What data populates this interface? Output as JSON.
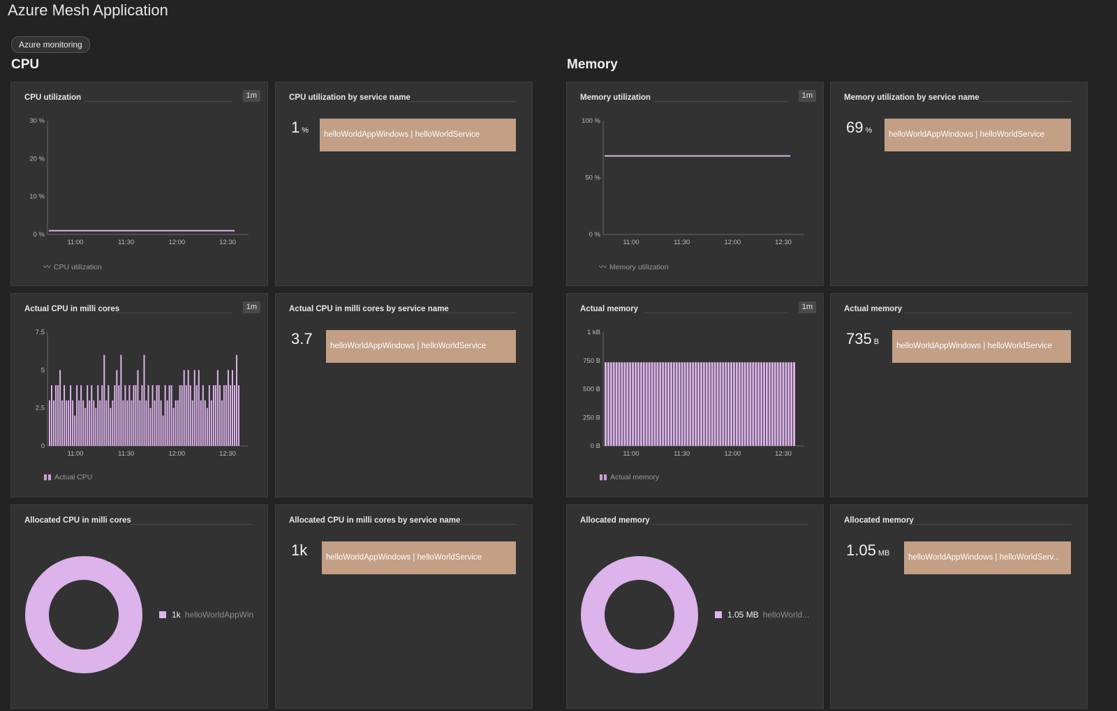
{
  "page": {
    "title": "Azure Mesh Application",
    "tag": "Azure monitoring"
  },
  "colors": {
    "background": "#232323",
    "tile": "#323232",
    "series": "#dcb3ea",
    "service_bar": "#c29f85"
  },
  "sections": {
    "cpu": "CPU",
    "memory": "Memory"
  },
  "tiles": {
    "cpu_util": {
      "title": "CPU utilization",
      "resolution": "1m",
      "legend": "CPU utilization",
      "legend_icon": "line-chart-icon"
    },
    "cpu_util_svc": {
      "title": "CPU utilization by service name",
      "value": "1",
      "unit": "%",
      "service": "helloWorldAppWindows | helloWorldService"
    },
    "actual_cpu": {
      "title": "Actual CPU in milli cores",
      "resolution": "1m",
      "legend": "Actual CPU",
      "legend_icon": "bar-chart-icon"
    },
    "actual_cpu_svc": {
      "title": "Actual CPU in milli cores by service name",
      "value": "3.7",
      "unit": "",
      "service": "helloWorldAppWindows | helloWorldService"
    },
    "alloc_cpu": {
      "title": "Allocated CPU in milli cores",
      "legend_value": "1k",
      "legend_name": "helloWorldAppWin"
    },
    "alloc_cpu_svc": {
      "title": "Allocated CPU in milli cores by service name",
      "value": "1k",
      "unit": "",
      "service": "helloWorldAppWindows | helloWorldService"
    },
    "mem_util": {
      "title": "Memory utilization",
      "resolution": "1m",
      "legend": "Memory utilization",
      "legend_icon": "line-chart-icon"
    },
    "mem_util_svc": {
      "title": "Memory utilization by service name",
      "value": "69",
      "unit": "%",
      "service": "helloWorldAppWindows | helloWorldService"
    },
    "actual_mem": {
      "title": "Actual memory",
      "resolution": "1m",
      "legend": "Actual memory",
      "legend_icon": "bar-chart-icon"
    },
    "actual_mem_svc": {
      "title": "Actual memory",
      "value": "735",
      "unit": "B",
      "service": "helloWorldAppWindows | helloWorldService"
    },
    "alloc_mem": {
      "title": "Allocated memory",
      "legend_value": "1.05 MB",
      "legend_name": "helloWorld..."
    },
    "alloc_mem_svc": {
      "title": "Allocated memory",
      "value": "1.05",
      "unit": "MB",
      "service": "helloWorldAppWindows | helloWorldServ..."
    }
  },
  "chart_data": [
    {
      "id": "cpu_util",
      "type": "line",
      "x_ticks": [
        "11:00",
        "11:30",
        "12:00",
        "12:30"
      ],
      "y_ticks": [
        "0 %",
        "10 %",
        "20 %",
        "30 %"
      ],
      "ylim": [
        0,
        30
      ],
      "series": [
        {
          "name": "CPU utilization",
          "values": [
            1,
            1,
            1,
            1,
            1,
            1,
            1,
            1
          ]
        }
      ]
    },
    {
      "id": "mem_util",
      "type": "line",
      "x_ticks": [
        "11:00",
        "11:30",
        "12:00",
        "12:30"
      ],
      "y_ticks": [
        "0 %",
        "50 %",
        "100 %"
      ],
      "ylim": [
        0,
        100
      ],
      "series": [
        {
          "name": "Memory utilization",
          "values": [
            69,
            69,
            69,
            69,
            69,
            69,
            69,
            69
          ]
        }
      ]
    },
    {
      "id": "actual_cpu",
      "type": "bar",
      "x_ticks": [
        "11:00",
        "11:30",
        "12:00",
        "12:30"
      ],
      "y_ticks": [
        "0",
        "2.5",
        "5",
        "7.5"
      ],
      "ylim": [
        0,
        7.5
      ],
      "series": [
        {
          "name": "Actual CPU",
          "values": [
            3.0,
            4.0,
            3.0,
            4.0,
            4.0,
            5.0,
            3.0,
            4.0,
            3.0,
            3.0,
            4.0,
            3.0,
            2.0,
            4.0,
            3.0,
            4.0,
            3.0,
            2.5,
            4.0,
            3.0,
            4.0,
            3.0,
            2.5,
            4.0,
            3.0,
            4.0,
            6.0,
            3.0,
            4.0,
            2.5,
            3.0,
            4.0,
            5.0,
            4.0,
            6.0,
            3.0,
            4.0,
            3.0,
            4.0,
            3.0,
            4.0,
            4.0,
            5.0,
            3.0,
            4.0,
            6.0,
            3.0,
            4.0,
            2.5,
            4.0,
            3.0,
            4.0,
            4.0,
            3.0,
            2.0,
            4.0,
            3.0,
            4.0,
            4.0,
            2.5,
            3.0,
            3.0,
            4.0,
            4.0,
            5.0,
            4.0,
            5.0,
            4.0,
            3.0,
            5.0,
            4.0,
            5.0,
            3.0,
            4.0,
            3.0,
            2.5,
            4.0,
            3.0,
            4.0,
            4.0,
            5.0,
            4.0,
            3.0,
            4.0,
            4.0,
            5.0,
            4.0,
            5.0,
            4.0,
            6.0,
            4.0
          ]
        }
      ]
    },
    {
      "id": "actual_mem",
      "type": "bar",
      "x_ticks": [
        "11:00",
        "11:30",
        "12:00",
        "12:30"
      ],
      "y_ticks": [
        "0 B",
        "250 B",
        "500 B",
        "750 B",
        "1 kB"
      ],
      "ylim": [
        0,
        1000
      ],
      "series": [
        {
          "name": "Actual memory",
          "values": [
            735,
            735,
            735,
            735,
            735,
            735,
            735,
            735,
            735,
            735,
            735,
            735,
            735,
            735,
            735,
            735,
            735,
            735,
            735,
            735,
            735,
            735,
            735,
            735,
            735,
            735,
            735,
            735,
            735,
            735,
            735,
            735,
            735,
            735,
            735,
            735,
            735,
            735,
            735,
            735,
            735,
            735,
            735,
            735,
            735,
            735,
            735,
            735,
            735,
            735,
            735,
            735,
            735,
            735,
            735,
            735,
            735,
            735,
            735,
            735,
            735,
            735,
            735,
            735,
            735,
            735,
            735,
            735,
            735,
            735
          ]
        }
      ]
    },
    {
      "id": "alloc_cpu",
      "type": "pie",
      "slices": [
        {
          "name": "helloWorldAppWin",
          "value": 1000,
          "label": "1k"
        }
      ]
    },
    {
      "id": "alloc_mem",
      "type": "pie",
      "slices": [
        {
          "name": "helloWorld...",
          "value": 1.05,
          "label": "1.05 MB"
        }
      ]
    }
  ]
}
